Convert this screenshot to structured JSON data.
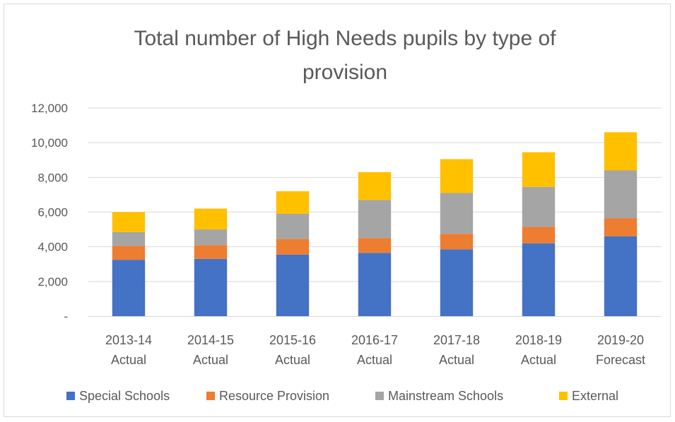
{
  "chart_data": {
    "type": "bar",
    "stacked": true,
    "title": "Total number of High Needs pupils by type of provision",
    "title_lines": [
      "Total number of High Needs pupils by type of",
      "provision"
    ],
    "categories": [
      [
        "2013-14",
        "Actual"
      ],
      [
        "2014-15",
        "Actual"
      ],
      [
        "2015-16",
        "Actual"
      ],
      [
        "2016-17",
        "Actual"
      ],
      [
        "2017-18",
        "Actual"
      ],
      [
        "2018-19",
        "Actual"
      ],
      [
        "2019-20",
        "Forecast"
      ]
    ],
    "series": [
      {
        "name": "Special Schools",
        "color": "#4472C4",
        "values": [
          3250,
          3300,
          3550,
          3650,
          3850,
          4200,
          4600
        ]
      },
      {
        "name": "Resource Provision",
        "color": "#ED7D31",
        "values": [
          800,
          800,
          900,
          850,
          900,
          950,
          1050
        ]
      },
      {
        "name": "Mainstream Schools",
        "color": "#A5A5A5",
        "values": [
          800,
          900,
          1450,
          2200,
          2350,
          2300,
          2750
        ]
      },
      {
        "name": "External",
        "color": "#FFC000",
        "values": [
          1150,
          1200,
          1300,
          1600,
          1950,
          2000,
          2200
        ]
      }
    ],
    "ylim": [
      0,
      12000
    ],
    "yticks": [
      0,
      2000,
      4000,
      6000,
      8000,
      10000,
      12000
    ],
    "ytick_labels": [
      "-",
      "2,000",
      "4,000",
      "6,000",
      "8,000",
      "10,000",
      "12,000"
    ],
    "grid": true,
    "legend_position": "bottom",
    "xlabel": "",
    "ylabel": ""
  }
}
